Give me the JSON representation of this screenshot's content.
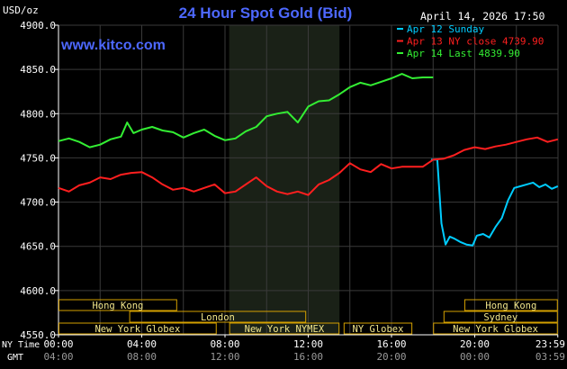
{
  "header": {
    "title": "24 Hour Spot Gold (Bid)",
    "unit": "USD/oz",
    "datetime": "April 14, 2026 17:50",
    "site": "www.kitco.com"
  },
  "colors": {
    "background": "#000000",
    "grid": "#3a3a3a",
    "axis": "#ffffff",
    "title": "#4d68ff",
    "today": "#33ee33",
    "yesterday": "#ff1f1f",
    "sunday": "#00ccff",
    "session_box": "#d4a000",
    "session_text": "#f2e68a",
    "shade": "#1a2117"
  },
  "legend": {
    "placement": "top-right",
    "items": [
      {
        "label": "Apr 12 Sunday",
        "color": "#00ccff"
      },
      {
        "label": "Apr 13 NY close 4739.90",
        "color": "#ff1f1f"
      },
      {
        "label": "Apr 14 Last 4839.90",
        "color": "#33ee33"
      }
    ]
  },
  "x_axis": {
    "row1_label": "NY Time",
    "row2_label": "GMT",
    "ny_ticks": [
      "00:00",
      "04:00",
      "08:00",
      "12:00",
      "16:00",
      "20:00",
      "23:59"
    ],
    "gmt_ticks": [
      "04:00",
      "08:00",
      "12:00",
      "16:00",
      "20:00",
      "00:00",
      "03:59"
    ]
  },
  "sessions": [
    {
      "label": "Hong Kong",
      "start": 0,
      "end": 5.7,
      "row": 0
    },
    {
      "label": "London",
      "start": 3.4,
      "end": 11.9,
      "row": 1
    },
    {
      "label": "New York Globex",
      "start": 0,
      "end": 7.6,
      "row": 2
    },
    {
      "label": "New York NYMEX",
      "start": 8.2,
      "end": 13.5,
      "row": 2
    },
    {
      "label": "NY Globex",
      "start": 13.7,
      "end": 17,
      "row": 2
    },
    {
      "label": "Hong Kong",
      "start": 19.5,
      "end": 23.99,
      "row": 0
    },
    {
      "label": "Sydney",
      "start": 18.5,
      "end": 23.99,
      "row": 1
    },
    {
      "label": "New York Globex",
      "start": 18,
      "end": 23.99,
      "row": 2
    }
  ],
  "chart_data": {
    "type": "line",
    "ylim": [
      4550,
      4900
    ],
    "xlim": [
      0,
      24
    ],
    "grid": true,
    "shaded_region": [
      8.2,
      13.5
    ],
    "yticks": [
      4550,
      4600,
      4650,
      4700,
      4750,
      4800,
      4850,
      4900
    ],
    "ytick_labels": [
      "4550.0",
      "4600.0",
      "4650.0",
      "4700.0",
      "4750.0",
      "4800.0",
      "4850.0",
      "4900.0"
    ],
    "series": [
      {
        "name": "Apr 12 Sunday",
        "color": "#00ccff",
        "x": [
          17.9,
          18.2,
          18.4,
          18.6,
          18.8,
          19.0,
          19.3,
          19.6,
          19.9,
          20.1,
          20.4,
          20.7,
          21.0,
          21.3,
          21.6,
          21.9,
          22.2,
          22.5,
          22.8,
          23.1,
          23.4,
          23.7,
          23.99
        ],
        "y": [
          4748,
          4748,
          4676,
          4652,
          4661,
          4659,
          4655,
          4652,
          4651,
          4662,
          4664,
          4660,
          4672,
          4682,
          4702,
          4716,
          4718,
          4720,
          4722,
          4717,
          4720,
          4715,
          4718
        ]
      },
      {
        "name": "Apr 13 NY close 4739.90",
        "color": "#ff1f1f",
        "x": [
          0,
          0.5,
          1.0,
          1.5,
          2.0,
          2.5,
          3.0,
          3.5,
          4.0,
          4.5,
          5.0,
          5.5,
          6.0,
          6.5,
          7.0,
          7.5,
          8.0,
          8.5,
          9.0,
          9.5,
          10.0,
          10.5,
          11.0,
          11.5,
          12.0,
          12.5,
          13.0,
          13.5,
          14.0,
          14.5,
          15.0,
          15.5,
          16.0,
          16.5,
          17.0,
          17.5,
          18.0,
          18.5,
          19.0,
          19.5,
          20.0,
          20.5,
          21.0,
          21.5,
          22.0,
          22.5,
          23.0,
          23.5,
          23.99
        ],
        "y": [
          4716,
          4712,
          4719,
          4722,
          4728,
          4726,
          4731,
          4733,
          4734,
          4728,
          4720,
          4714,
          4716,
          4712,
          4716,
          4720,
          4710,
          4712,
          4720,
          4728,
          4718,
          4712,
          4709,
          4712,
          4708,
          4720,
          4725,
          4733,
          4744,
          4737,
          4734,
          4743,
          4738,
          4740,
          4740,
          4740,
          4748,
          4749,
          4753,
          4759,
          4762,
          4760,
          4763,
          4765,
          4768,
          4771,
          4773,
          4768,
          4771
        ]
      },
      {
        "name": "Apr 14 Last 4839.90",
        "color": "#33ee33",
        "x": [
          0,
          0.5,
          1.0,
          1.5,
          2.0,
          2.5,
          3.0,
          3.3,
          3.6,
          4.0,
          4.5,
          5.0,
          5.5,
          6.0,
          6.5,
          7.0,
          7.5,
          8.0,
          8.5,
          9.0,
          9.5,
          10.0,
          10.5,
          11.0,
          11.5,
          12.0,
          12.5,
          13.0,
          13.5,
          14.0,
          14.5,
          15.0,
          15.5,
          16.0,
          16.5,
          17.0,
          17.5,
          18.0
        ],
        "y": [
          4769,
          4772,
          4768,
          4762,
          4765,
          4771,
          4774,
          4790,
          4778,
          4782,
          4785,
          4781,
          4779,
          4773,
          4778,
          4782,
          4775,
          4770,
          4772,
          4780,
          4785,
          4797,
          4800,
          4802,
          4790,
          4808,
          4814,
          4815,
          4822,
          4830,
          4835,
          4832,
          4836,
          4840,
          4845,
          4840,
          4841,
          4841
        ]
      }
    ]
  }
}
